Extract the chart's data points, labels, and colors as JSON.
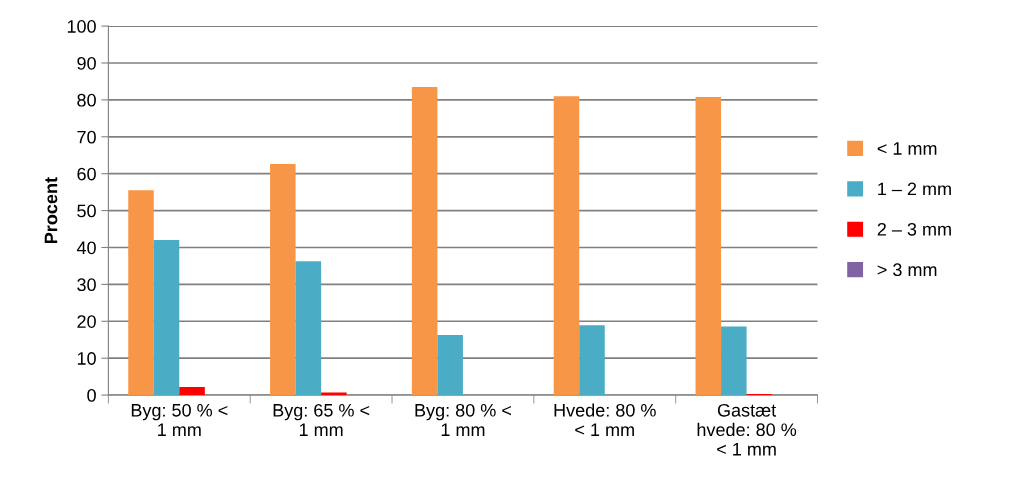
{
  "chart_data": {
    "type": "bar",
    "ylabel": "Procent",
    "categories": [
      "Byg: 50 % <\n1 mm",
      "Byg: 65 % <\n1 mm",
      "Byg: 80 % <\n1 mm",
      "Hvede: 80 %\n< 1 mm",
      "Gastæt\nhvede: 80 %\n< 1 mm"
    ],
    "series": [
      {
        "name": "< 1 mm",
        "color": "#f79646",
        "values": [
          55.5,
          62.6,
          83.5,
          81.0,
          80.8
        ]
      },
      {
        "name": "1 – 2 mm",
        "color": "#4bacc6",
        "values": [
          42.0,
          36.3,
          16.3,
          18.9,
          18.6
        ]
      },
      {
        "name": "2 – 3 mm",
        "color": "#ff0000",
        "values": [
          2.2,
          0.7,
          0,
          0,
          0.3
        ]
      },
      {
        "name": "> 3 mm",
        "color": "#8064a2",
        "values": [
          0,
          0,
          0,
          0,
          null
        ]
      }
    ],
    "ylim": [
      0,
      100
    ],
    "yticks": [
      0,
      10,
      20,
      30,
      40,
      50,
      60,
      70,
      80,
      90,
      100
    ],
    "grid": "y",
    "legend": "right"
  }
}
